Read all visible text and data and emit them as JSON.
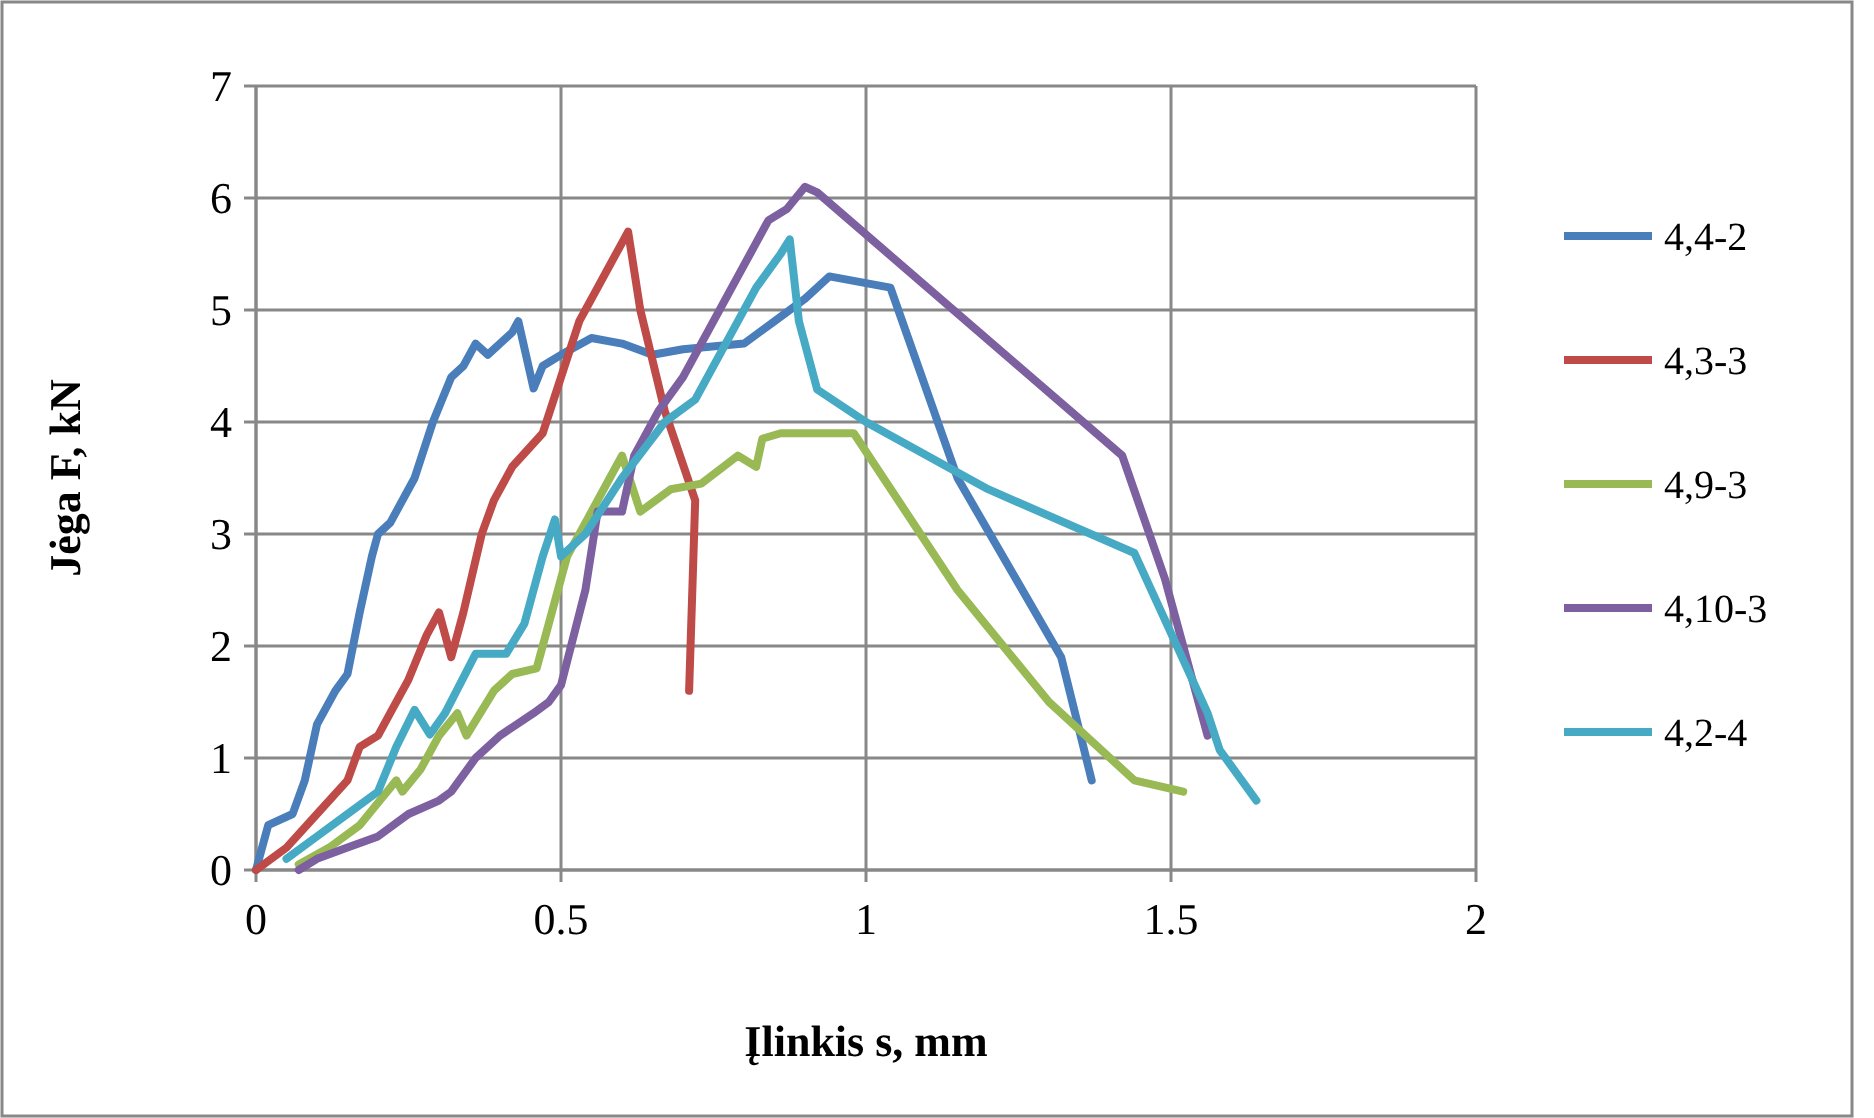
{
  "chart_data": {
    "type": "line",
    "xlabel": "Įlinkis  s, mm",
    "ylabel": "Jėga F, kN",
    "xlim": [
      0,
      2
    ],
    "ylim": [
      0,
      7
    ],
    "xticks": [
      0,
      {
        "value": 0.5,
        "label": "0.5"
      },
      1,
      {
        "value": 1.5,
        "label": "1.5"
      },
      2
    ],
    "yticks": [
      0,
      1,
      2,
      3,
      4,
      5,
      6,
      7
    ],
    "grid": true,
    "legend": "right",
    "marker": "none",
    "line_style": "solid",
    "series": [
      {
        "name": "4,4-2",
        "color": "#4a7ebb",
        "x": [
          0,
          0.02,
          0.06,
          0.08,
          0.1,
          0.13,
          0.15,
          0.17,
          0.19,
          0.2,
          0.22,
          0.26,
          0.29,
          0.32,
          0.34,
          0.36,
          0.38,
          0.42,
          0.43,
          0.455,
          0.47,
          0.5,
          0.55,
          0.6,
          0.65,
          0.7,
          0.8,
          0.85,
          0.9,
          0.94,
          1.04,
          1.15,
          1.32,
          1.37
        ],
        "values": [
          0,
          0.4,
          0.5,
          0.8,
          1.3,
          1.6,
          1.75,
          2.3,
          2.8,
          3.0,
          3.1,
          3.5,
          4.0,
          4.4,
          4.5,
          4.7,
          4.6,
          4.8,
          4.9,
          4.3,
          4.5,
          4.6,
          4.75,
          4.7,
          4.6,
          4.65,
          4.7,
          4.9,
          5.1,
          5.3,
          5.2,
          3.5,
          1.9,
          0.8
        ]
      },
      {
        "name": "4,3-3",
        "color": "#be4b48",
        "x": [
          0,
          0.05,
          0.1,
          0.15,
          0.17,
          0.2,
          0.22,
          0.25,
          0.28,
          0.3,
          0.32,
          0.34,
          0.37,
          0.39,
          0.42,
          0.47,
          0.5,
          0.53,
          0.56,
          0.6,
          0.61,
          0.63,
          0.67,
          0.72,
          0.71
        ],
        "values": [
          0,
          0.2,
          0.5,
          0.8,
          1.1,
          1.2,
          1.4,
          1.7,
          2.1,
          2.3,
          1.9,
          2.3,
          3.0,
          3.3,
          3.6,
          3.9,
          4.4,
          4.9,
          5.2,
          5.6,
          5.7,
          5.0,
          4.1,
          3.3,
          1.6
        ]
      },
      {
        "name": "4,9-3",
        "color": "#98b954",
        "x": [
          0.07,
          0.12,
          0.17,
          0.2,
          0.23,
          0.24,
          0.27,
          0.3,
          0.33,
          0.345,
          0.39,
          0.42,
          0.46,
          0.48,
          0.51,
          0.55,
          0.58,
          0.6,
          0.63,
          0.68,
          0.73,
          0.79,
          0.82,
          0.83,
          0.86,
          0.98,
          1.15,
          1.3,
          1.44,
          1.52
        ],
        "values": [
          0.05,
          0.2,
          0.4,
          0.6,
          0.8,
          0.7,
          0.9,
          1.2,
          1.4,
          1.2,
          1.6,
          1.75,
          1.8,
          2.2,
          2.8,
          3.2,
          3.5,
          3.7,
          3.2,
          3.4,
          3.45,
          3.7,
          3.6,
          3.85,
          3.9,
          3.9,
          2.5,
          1.5,
          0.8,
          0.7
        ]
      },
      {
        "name": "4,10-3",
        "color": "#7d60a0",
        "x": [
          0.07,
          0.1,
          0.15,
          0.2,
          0.25,
          0.3,
          0.32,
          0.36,
          0.4,
          0.455,
          0.48,
          0.5,
          0.54,
          0.56,
          0.6,
          0.62,
          0.66,
          0.7,
          0.75,
          0.8,
          0.84,
          0.87,
          0.9,
          0.92,
          1.42,
          1.49,
          1.56
        ],
        "values": [
          0,
          0.1,
          0.2,
          0.3,
          0.5,
          0.62,
          0.7,
          1.0,
          1.2,
          1.4,
          1.5,
          1.65,
          2.5,
          3.2,
          3.2,
          3.7,
          4.1,
          4.4,
          4.9,
          5.4,
          5.8,
          5.9,
          6.1,
          6.05,
          3.7,
          2.6,
          1.2
        ]
      },
      {
        "name": "4,2-4",
        "color": "#46aac5",
        "x": [
          0.05,
          0.1,
          0.15,
          0.2,
          0.23,
          0.26,
          0.285,
          0.31,
          0.36,
          0.41,
          0.44,
          0.47,
          0.49,
          0.5,
          0.54,
          0.6,
          0.67,
          0.72,
          0.78,
          0.82,
          0.86,
          0.875,
          0.89,
          0.92,
          1.0,
          1.2,
          1.44,
          1.56,
          1.58,
          1.64
        ],
        "values": [
          0.1,
          0.3,
          0.5,
          0.7,
          1.1,
          1.43,
          1.21,
          1.4,
          1.93,
          1.93,
          2.2,
          2.8,
          3.13,
          2.8,
          3.0,
          3.5,
          4.0,
          4.2,
          4.8,
          5.2,
          5.5,
          5.63,
          4.9,
          4.29,
          4.0,
          3.4,
          2.83,
          1.4,
          1.07,
          0.62
        ]
      }
    ]
  }
}
